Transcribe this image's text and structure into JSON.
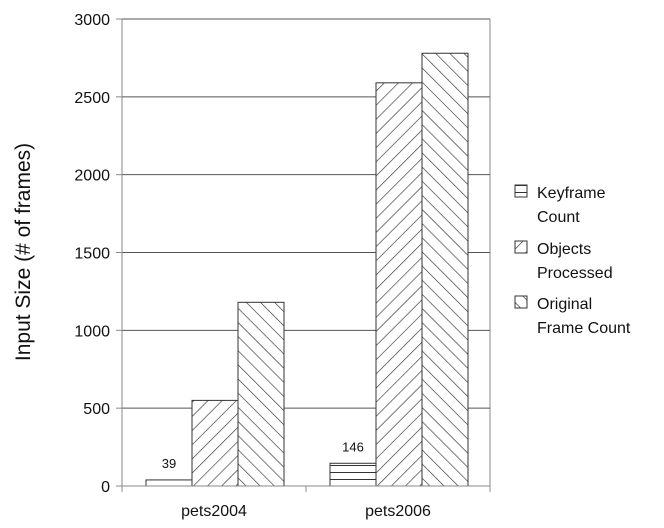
{
  "chart_data": {
    "type": "bar",
    "title": "",
    "xlabel": "",
    "ylabel": "Input Size (# of frames)",
    "categories": [
      "pets2004",
      "pets2006"
    ],
    "series": [
      {
        "name": "Keyframe Count",
        "legend_lines": [
          "Keyframe",
          "Count"
        ],
        "pattern": "horizontal-lines",
        "values": [
          39,
          146
        ],
        "data_labels": [
          "39",
          "146"
        ]
      },
      {
        "name": "Objects Processed",
        "legend_lines": [
          "Objects",
          "Processed"
        ],
        "pattern": "forward-diagonal",
        "values": [
          550,
          2590
        ],
        "data_labels": []
      },
      {
        "name": "Original Frame Count",
        "legend_lines": [
          "Original",
          "Frame Count"
        ],
        "pattern": "backward-diagonal",
        "values": [
          1180,
          2780
        ],
        "data_labels": []
      }
    ],
    "ylim": [
      0,
      3000
    ],
    "yticks": [
      0,
      500,
      1000,
      1500,
      2000,
      2500,
      3000
    ],
    "grid": "horizontal",
    "legend_position": "right",
    "colors": {
      "bar_stroke": "#333333",
      "bar_fill": "#ffffff",
      "grid": "#555555",
      "axis": "#888888"
    }
  }
}
